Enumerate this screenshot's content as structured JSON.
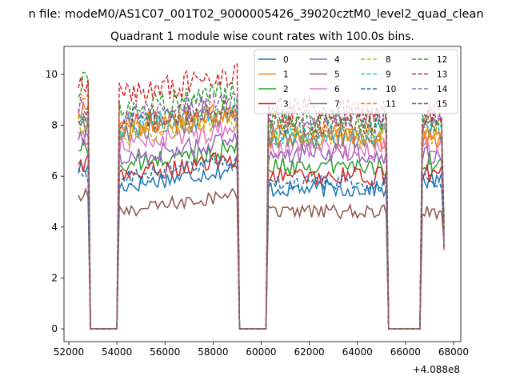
{
  "suptitle": "n file: modeM0/AS1C07_001T02_9000005426_39020cztM0_level2_quad_clean",
  "chart_data": {
    "type": "line",
    "title": "Quadrant 1 module wise count rates with 100.0s bins.",
    "xlabel": "",
    "ylabel": "",
    "x_offset_label": "+4.088e8",
    "xlim": [
      51800,
      68300
    ],
    "ylim": [
      -0.5,
      11.1
    ],
    "xticks": [
      52000,
      54000,
      56000,
      58000,
      60000,
      62000,
      64000,
      66000,
      68000
    ],
    "xtick_labels": [
      "52000",
      "54000",
      "56000",
      "58000",
      "60000",
      "62000",
      "64000",
      "66000",
      "68000"
    ],
    "yticks": [
      0,
      2,
      4,
      6,
      8,
      10
    ],
    "ytick_labels": [
      "0",
      "2",
      "4",
      "6",
      "8",
      "10"
    ],
    "legend_position": "top-right",
    "segments": [
      [
        52400,
        52800
      ],
      [
        54100,
        59000
      ],
      [
        60300,
        65200
      ],
      [
        66650,
        67650
      ]
    ],
    "x_range": [
      52400,
      67650
    ],
    "series": [
      {
        "name": "0",
        "color": "#1f77b4",
        "dash": "solid",
        "segment_levels": [
          6.3,
          5.6,
          5.5,
          5.8
        ]
      },
      {
        "name": "1",
        "color": "#ff7f0e",
        "dash": "solid",
        "segment_levels": [
          8.7,
          7.9,
          7.5,
          7.5
        ]
      },
      {
        "name": "2",
        "color": "#2ca02c",
        "dash": "solid",
        "segment_levels": [
          7.1,
          6.4,
          6.4,
          6.6
        ]
      },
      {
        "name": "3",
        "color": "#d62728",
        "dash": "solid",
        "segment_levels": [
          6.5,
          6.0,
          6.0,
          6.1
        ]
      },
      {
        "name": "4",
        "color": "#9467bd",
        "dash": "solid",
        "segment_levels": [
          7.4,
          6.7,
          6.9,
          6.8
        ]
      },
      {
        "name": "5",
        "color": "#8c564b",
        "dash": "solid",
        "segment_levels": [
          5.2,
          4.6,
          4.6,
          4.6
        ]
      },
      {
        "name": "6",
        "color": "#e377c2",
        "dash": "solid",
        "segment_levels": [
          7.6,
          7.2,
          7.1,
          7.2
        ]
      },
      {
        "name": "7",
        "color": "#7f7f7f",
        "dash": "solid",
        "segment_levels": [
          7.9,
          7.7,
          7.5,
          7.7
        ]
      },
      {
        "name": "8",
        "color": "#bcbd22",
        "dash": "dashed",
        "segment_levels": [
          8.1,
          7.6,
          7.6,
          7.7
        ]
      },
      {
        "name": "9",
        "color": "#17becf",
        "dash": "dashed",
        "segment_levels": [
          8.3,
          7.9,
          7.7,
          7.8
        ]
      },
      {
        "name": "10",
        "color": "#1f77b4",
        "dash": "dashed",
        "segment_levels": [
          6.0,
          5.9,
          5.7,
          5.8
        ]
      },
      {
        "name": "11",
        "color": "#ff7f0e",
        "dash": "dashed",
        "segment_levels": [
          8.8,
          7.8,
          7.7,
          7.7
        ]
      },
      {
        "name": "12",
        "color": "#2ca02c",
        "dash": "dashed",
        "segment_levels": [
          9.6,
          8.6,
          8.2,
          8.0
        ]
      },
      {
        "name": "13",
        "color": "#d62728",
        "dash": "dashed",
        "segment_levels": [
          9.9,
          9.2,
          8.6,
          8.5
        ]
      },
      {
        "name": "14",
        "color": "#9467bd",
        "dash": "dashed",
        "segment_levels": [
          8.8,
          8.3,
          8.4,
          8.4
        ]
      },
      {
        "name": "15",
        "color": "#8c564b",
        "dash": "dashed",
        "segment_levels": [
          8.4,
          8.1,
          8.0,
          8.2
        ]
      }
    ]
  }
}
